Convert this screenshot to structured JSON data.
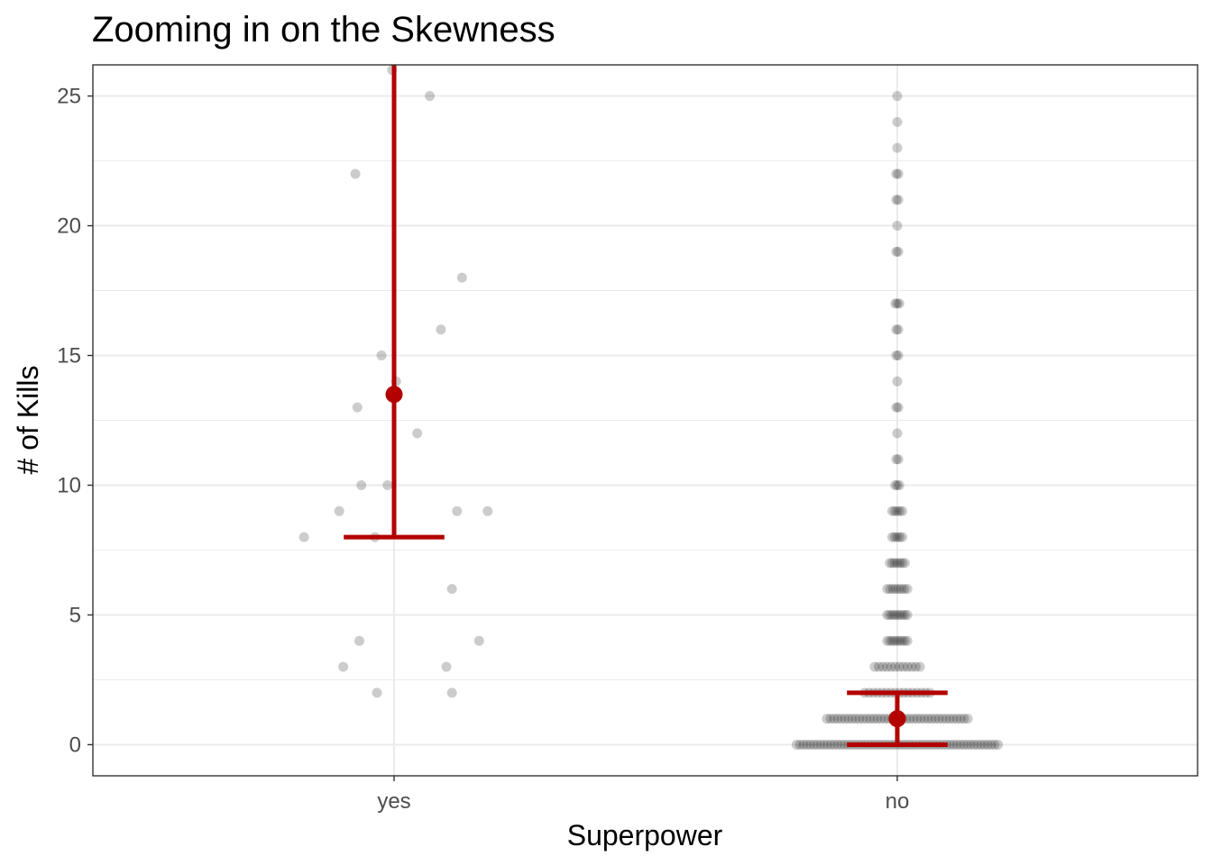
{
  "chart_data": {
    "type": "scatter",
    "title": "Zooming in on the Skewness",
    "xlabel": "Superpower",
    "ylabel": "# of Kills",
    "categories": [
      "yes",
      "no"
    ],
    "ylim": [
      -1.2,
      26.2
    ],
    "y_ticks": [
      0,
      5,
      10,
      15,
      20,
      25
    ],
    "y_tick_labels": [
      "0",
      "5",
      "10",
      "15",
      "20",
      "25"
    ],
    "grid": true,
    "theme": "bw",
    "colors": {
      "points": "#000000",
      "summary": "#b30000",
      "grid": "#ebebeb",
      "panel_border": "#333333"
    },
    "series": [
      {
        "category": "yes",
        "points": [
          {
            "x": -0.004,
            "y": 26
          },
          {
            "x": 0.071,
            "y": 25
          },
          {
            "x": -0.077,
            "y": 22
          },
          {
            "x": 0.135,
            "y": 18
          },
          {
            "x": 0.093,
            "y": 16
          },
          {
            "x": -0.025,
            "y": 15
          },
          {
            "x": 0.004,
            "y": 14
          },
          {
            "x": -0.073,
            "y": 13
          },
          {
            "x": 0.046,
            "y": 12
          },
          {
            "x": -0.065,
            "y": 10
          },
          {
            "x": -0.013,
            "y": 10
          },
          {
            "x": -0.109,
            "y": 9
          },
          {
            "x": 0.125,
            "y": 9
          },
          {
            "x": 0.186,
            "y": 9
          },
          {
            "x": -0.179,
            "y": 8
          },
          {
            "x": -0.038,
            "y": 8
          },
          {
            "x": 0.115,
            "y": 6
          },
          {
            "x": -0.069,
            "y": 4
          },
          {
            "x": 0.169,
            "y": 4
          },
          {
            "x": -0.101,
            "y": 3
          },
          {
            "x": 0.104,
            "y": 3
          },
          {
            "x": -0.034,
            "y": 2
          },
          {
            "x": 0.115,
            "y": 2
          }
        ],
        "summary": {
          "point": 13.5,
          "upper": 26.2,
          "lower": 8
        }
      },
      {
        "category": "no",
        "points_by_value": [
          {
            "y": 25,
            "count": 1,
            "spread": 0.0
          },
          {
            "y": 24,
            "count": 1,
            "spread": 0.0
          },
          {
            "y": 23,
            "count": 1,
            "spread": 0.0
          },
          {
            "y": 22,
            "count": 2,
            "spread": 0.002
          },
          {
            "y": 21,
            "count": 2,
            "spread": 0.002
          },
          {
            "y": 20,
            "count": 1,
            "spread": 0.0
          },
          {
            "y": 19,
            "count": 2,
            "spread": 0.002
          },
          {
            "y": 17,
            "count": 3,
            "spread": 0.004
          },
          {
            "y": 16,
            "count": 2,
            "spread": 0.002
          },
          {
            "y": 15,
            "count": 2,
            "spread": 0.002
          },
          {
            "y": 14,
            "count": 1,
            "spread": 0.0
          },
          {
            "y": 13,
            "count": 2,
            "spread": 0.002
          },
          {
            "y": 12,
            "count": 1,
            "spread": 0.0
          },
          {
            "y": 11,
            "count": 2,
            "spread": 0.002
          },
          {
            "y": 10,
            "count": 3,
            "spread": 0.004
          },
          {
            "y": 9,
            "count": 5,
            "spread": 0.01
          },
          {
            "y": 8,
            "count": 5,
            "spread": 0.01
          },
          {
            "y": 7,
            "count": 7,
            "spread": 0.015
          },
          {
            "y": 6,
            "count": 8,
            "spread": 0.02
          },
          {
            "y": 5,
            "count": 9,
            "spread": 0.02
          },
          {
            "y": 4,
            "count": 9,
            "spread": 0.02
          },
          {
            "y": 3,
            "count": 12,
            "spread": 0.045
          },
          {
            "y": 2,
            "count": 16,
            "spread": 0.065
          },
          {
            "y": 1,
            "count": 40,
            "spread": 0.14
          },
          {
            "y": 0,
            "count": 60,
            "spread": 0.2
          }
        ],
        "summary": {
          "point": 1,
          "upper": 2,
          "lower": 0
        }
      }
    ]
  }
}
